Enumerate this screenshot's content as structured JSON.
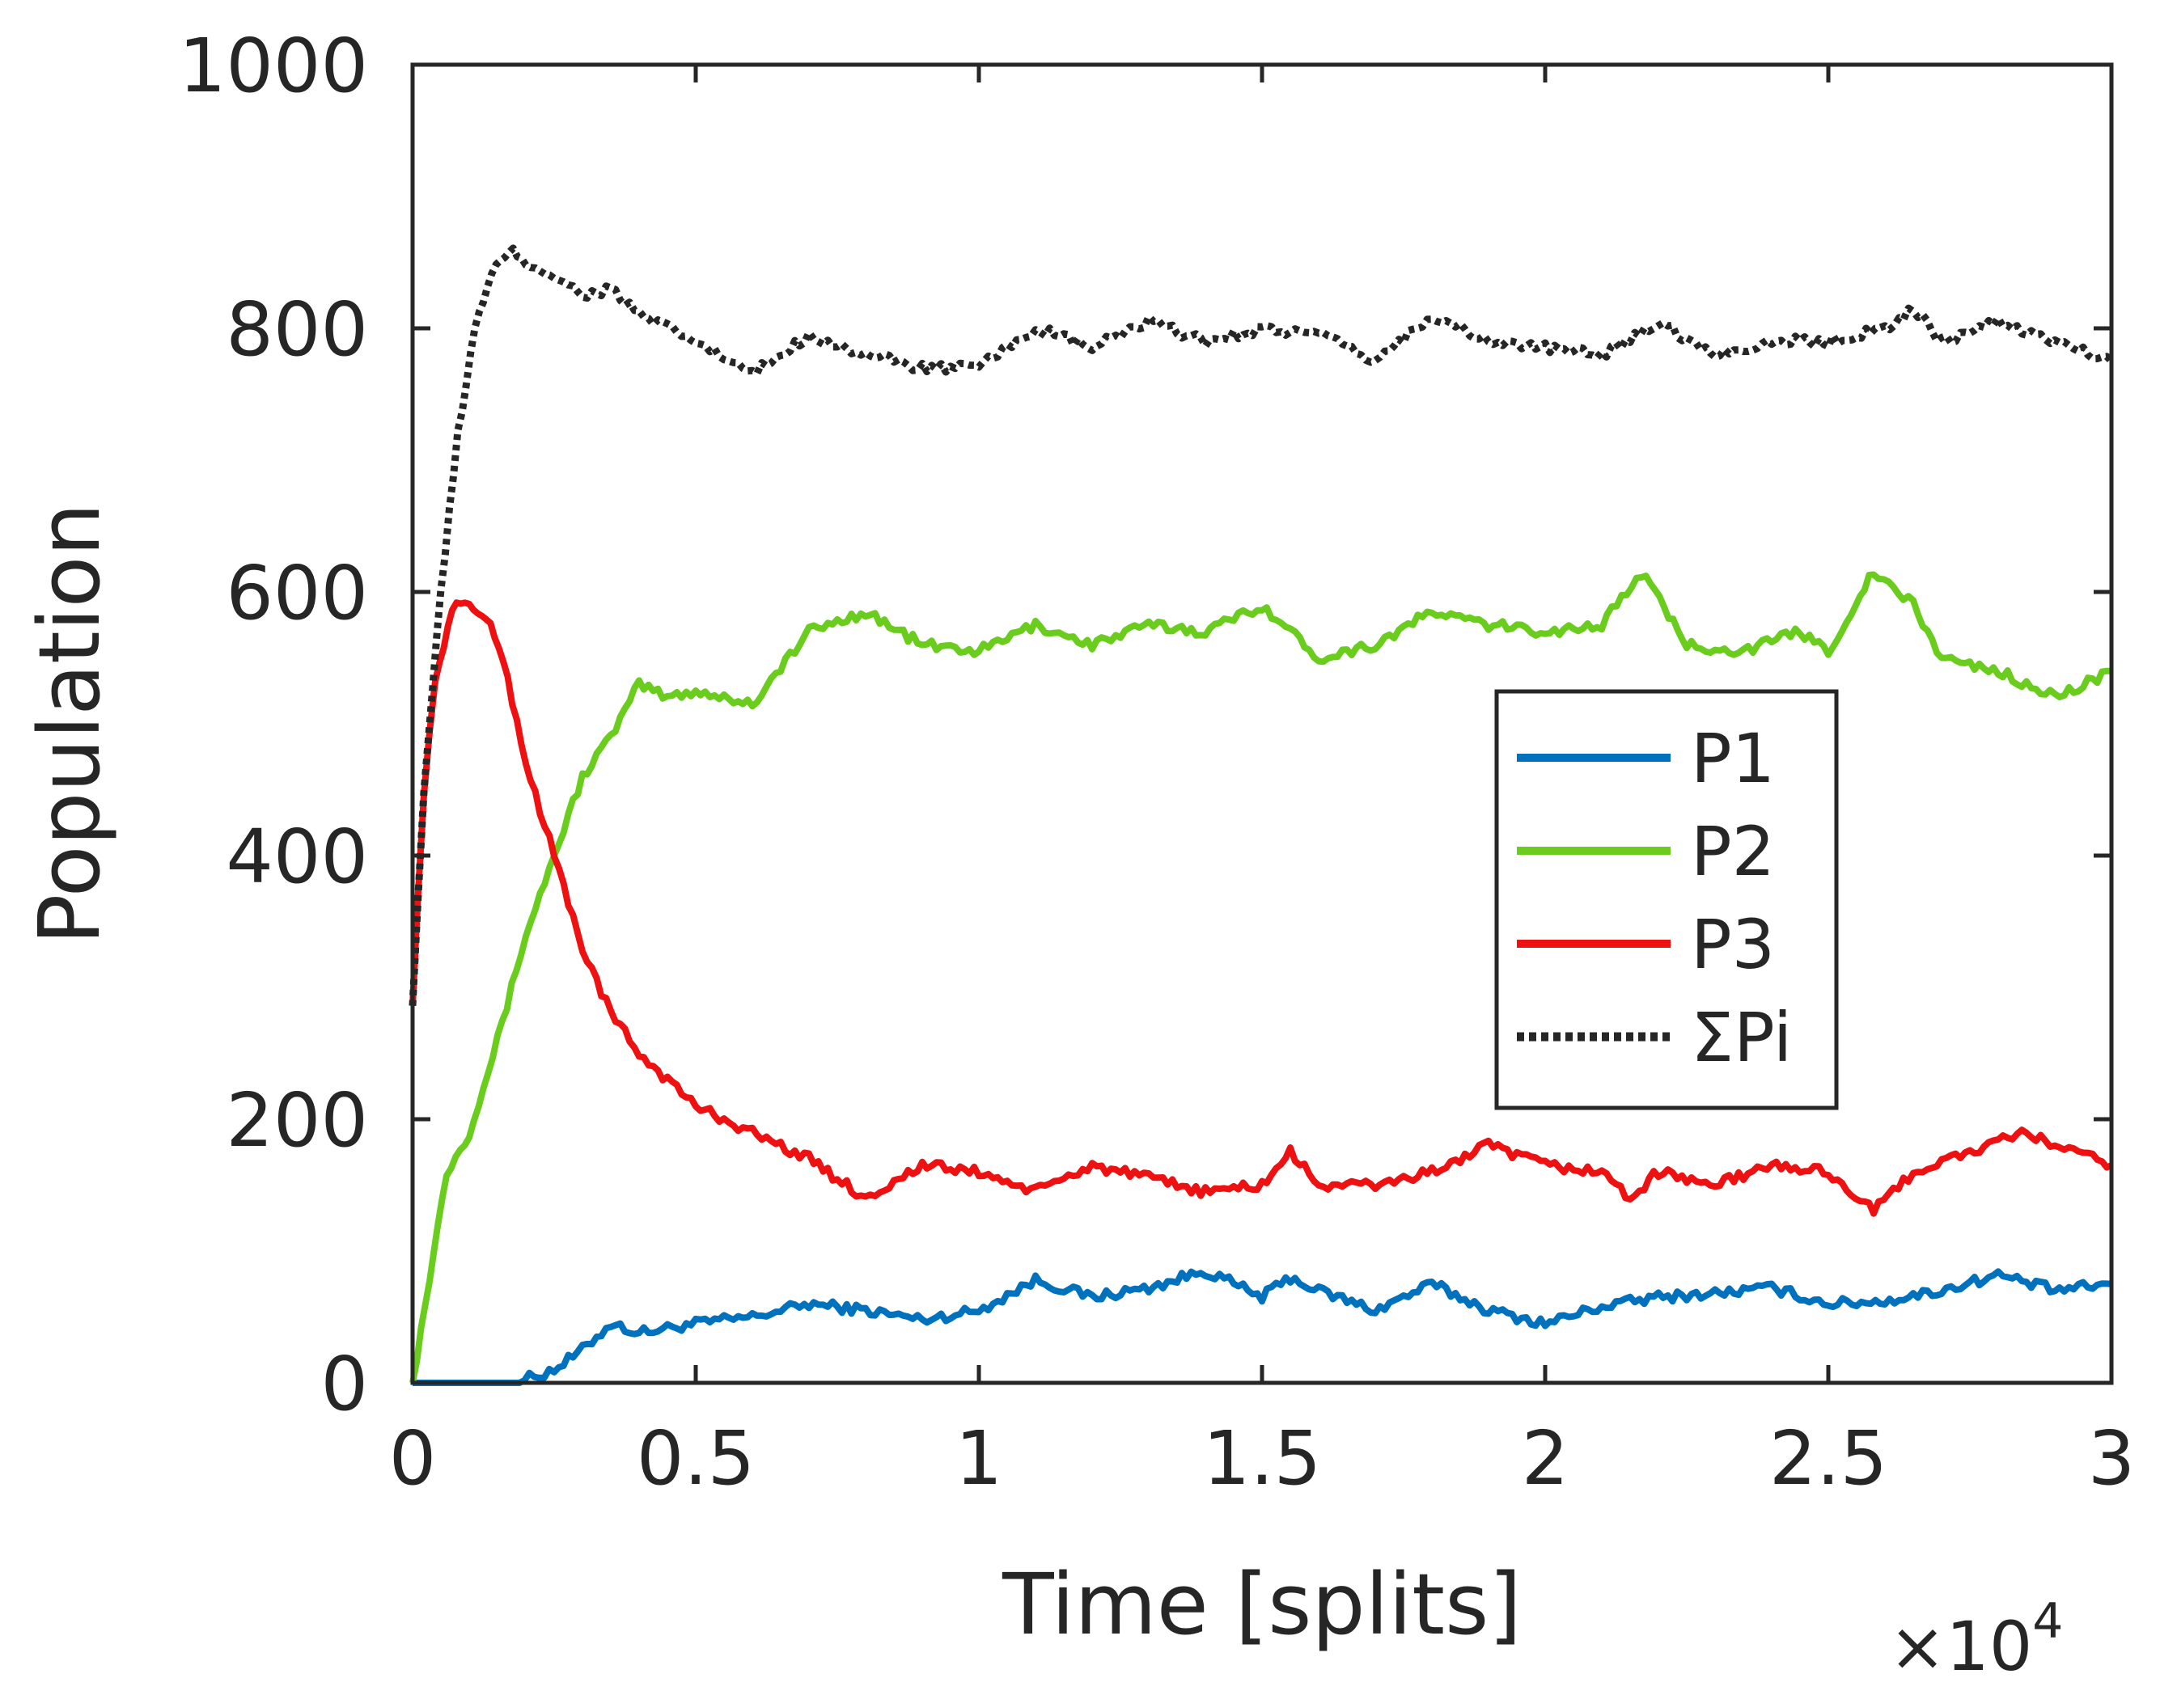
{
  "chart_data": {
    "type": "line",
    "xlabel": "Time [splits]",
    "ylabel": "Population",
    "x_multiplier_label": "×10",
    "x_multiplier_exponent": "4",
    "xlim": [
      0,
      3
    ],
    "ylim": [
      0,
      1000
    ],
    "x_ticks": [
      0,
      0.5,
      1,
      1.5,
      2,
      2.5,
      3
    ],
    "x_tick_labels": [
      "0",
      "0.5",
      "1",
      "1.5",
      "2",
      "2.5",
      "3"
    ],
    "y_ticks": [
      0,
      200,
      400,
      600,
      800,
      1000
    ],
    "y_tick_labels": [
      "0",
      "200",
      "400",
      "600",
      "800",
      "1000"
    ],
    "grid": false,
    "legend_position": "center-right",
    "series": [
      {
        "name": "P1",
        "color": "#0072BD",
        "style": "solid",
        "x": [
          0,
          0.1,
          0.18,
          0.25,
          0.3,
          0.35,
          0.4,
          0.5,
          0.6,
          0.7,
          0.8,
          0.9,
          1.0,
          1.1,
          1.2,
          1.3,
          1.4,
          1.5,
          1.55,
          1.6,
          1.7,
          1.8,
          1.9,
          2.0,
          2.1,
          2.2,
          2.3,
          2.4,
          2.5,
          2.6,
          2.7,
          2.8,
          2.9,
          3.0
        ],
        "values": [
          0,
          0,
          0,
          10,
          25,
          45,
          38,
          45,
          50,
          60,
          55,
          48,
          55,
          78,
          65,
          72,
          85,
          65,
          80,
          70,
          55,
          75,
          55,
          45,
          58,
          65,
          68,
          72,
          60,
          62,
          70,
          82,
          70,
          75
        ]
      },
      {
        "name": "P2",
        "color": "#6ACD1E",
        "style": "solid",
        "x": [
          0,
          0.03,
          0.06,
          0.1,
          0.15,
          0.2,
          0.25,
          0.3,
          0.35,
          0.4,
          0.45,
          0.5,
          0.6,
          0.7,
          0.8,
          0.9,
          1.0,
          1.1,
          1.2,
          1.3,
          1.4,
          1.5,
          1.6,
          1.7,
          1.8,
          1.9,
          2.0,
          2.1,
          2.17,
          2.25,
          2.35,
          2.45,
          2.5,
          2.58,
          2.65,
          2.7,
          2.8,
          2.9,
          3.0
        ],
        "values": [
          0,
          80,
          160,
          190,
          260,
          340,
          400,
          460,
          490,
          530,
          520,
          525,
          515,
          570,
          585,
          560,
          555,
          575,
          560,
          575,
          570,
          590,
          550,
          560,
          585,
          575,
          570,
          575,
          615,
          560,
          555,
          570,
          555,
          615,
          590,
          550,
          540,
          520,
          540
        ]
      },
      {
        "name": "P3",
        "color": "#EE1111",
        "style": "solid",
        "x": [
          0,
          0.02,
          0.04,
          0.07,
          0.1,
          0.13,
          0.16,
          0.2,
          0.25,
          0.3,
          0.35,
          0.4,
          0.5,
          0.6,
          0.7,
          0.8,
          0.9,
          1.0,
          1.1,
          1.2,
          1.3,
          1.4,
          1.5,
          1.55,
          1.6,
          1.7,
          1.8,
          1.9,
          2.0,
          2.1,
          2.15,
          2.2,
          2.3,
          2.4,
          2.5,
          2.58,
          2.65,
          2.75,
          2.85,
          2.9,
          3.0
        ],
        "values": [
          290,
          450,
          530,
          590,
          590,
          580,
          550,
          470,
          400,
          330,
          280,
          250,
          210,
          190,
          170,
          140,
          165,
          160,
          145,
          165,
          155,
          145,
          150,
          175,
          150,
          150,
          160,
          180,
          165,
          160,
          140,
          160,
          150,
          165,
          160,
          130,
          160,
          175,
          190,
          180,
          165
        ]
      },
      {
        "name": "ΣPi",
        "color": "#262626",
        "style": "dotted",
        "x": [
          0,
          0.02,
          0.05,
          0.08,
          0.11,
          0.14,
          0.17,
          0.2,
          0.25,
          0.3,
          0.35,
          0.4,
          0.5,
          0.6,
          0.7,
          0.8,
          0.9,
          1.0,
          1.1,
          1.2,
          1.3,
          1.4,
          1.5,
          1.6,
          1.7,
          1.8,
          1.9,
          2.0,
          2.1,
          2.2,
          2.3,
          2.4,
          2.5,
          2.6,
          2.65,
          2.7,
          2.8,
          2.9,
          3.0
        ],
        "values": [
          290,
          450,
          600,
          720,
          800,
          840,
          860,
          850,
          840,
          825,
          830,
          810,
          790,
          765,
          795,
          780,
          770,
          770,
          800,
          785,
          805,
          790,
          800,
          795,
          775,
          810,
          790,
          785,
          780,
          805,
          780,
          790,
          790,
          800,
          815,
          790,
          805,
          790,
          775
        ]
      }
    ]
  }
}
